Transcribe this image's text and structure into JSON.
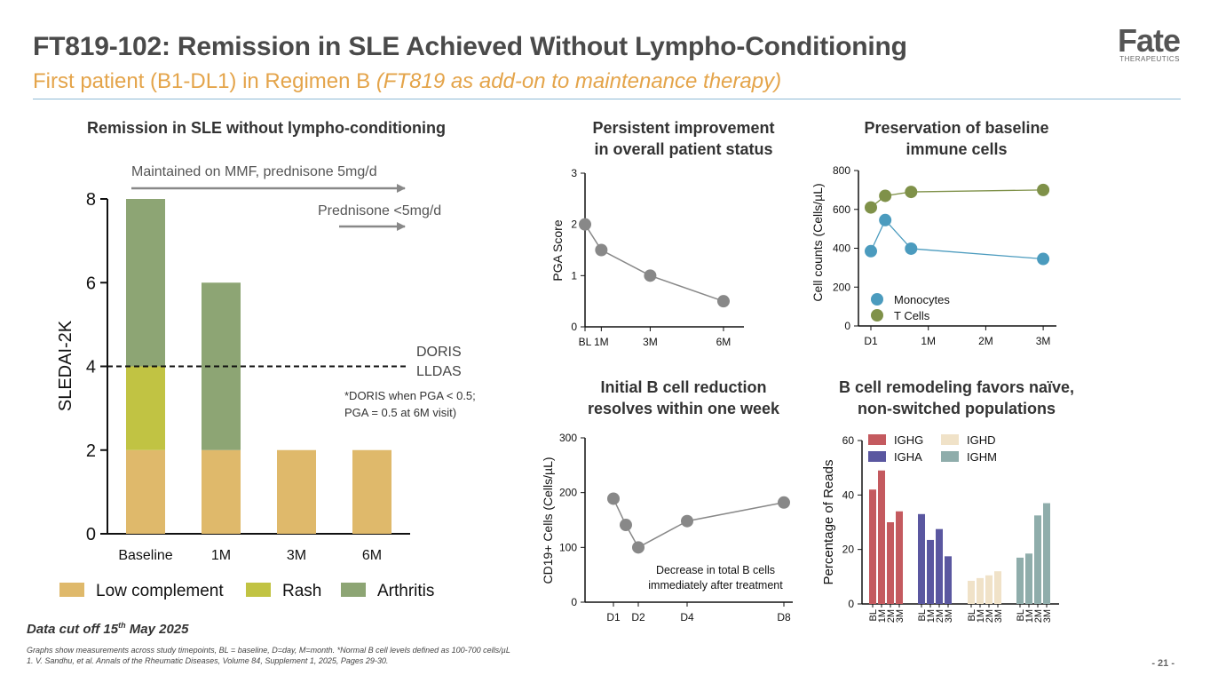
{
  "header": {
    "title": "FT819-102: Remission in SLE Achieved Without Lympho-Conditioning",
    "subtitle_main": "First patient (B1-DL1) in Regimen B ",
    "subtitle_italic": "(FT819 as add-on to maintenance therapy)",
    "logo_text": "Fate",
    "logo_sub": "THERAPEUTICS"
  },
  "colors": {
    "low_complement": "#dfb96b",
    "rash": "#c1c343",
    "arthritis": "#8da574",
    "gray_line": "#888888",
    "monocytes": "#4b9bbe",
    "tcells": "#7f9149",
    "ighg": "#c45a5f",
    "igha": "#5a57a0",
    "ighd": "#f0e2c8",
    "ighm": "#8fadab"
  },
  "chart_data": [
    {
      "id": "sledai",
      "type": "bar",
      "stacked": true,
      "title": "Remission in SLE without lympho-conditioning",
      "categories": [
        "Baseline",
        "1M",
        "3M",
        "6M"
      ],
      "series": [
        {
          "name": "Low complement",
          "values": [
            2,
            2,
            2,
            2
          ]
        },
        {
          "name": "Rash",
          "values": [
            2,
            0,
            0,
            0
          ]
        },
        {
          "name": "Arthritis",
          "values": [
            4,
            4,
            0,
            0
          ]
        }
      ],
      "ylabel": "SLEDAI-2K",
      "ylim": [
        0,
        8
      ],
      "yticks": [
        0,
        2,
        4,
        6,
        8
      ],
      "threshold": {
        "value": 4,
        "label1": "DORIS",
        "label2": "LLDAS"
      },
      "annotations": {
        "arrow1": "Maintained on MMF, prednisone 5mg/d",
        "arrow2": "Prednisone <5mg/d",
        "note1": "*DORIS when PGA < 0.5;",
        "note2": "PGA = 0.5 at 6M visit)"
      }
    },
    {
      "id": "pga",
      "type": "line",
      "title1": "Persistent improvement",
      "title2": "in overall patient status",
      "x": [
        "BL",
        "1M",
        "3M",
        "6M"
      ],
      "x_months": [
        0,
        0.5,
        2,
        4.25
      ],
      "values": [
        2,
        1.5,
        1,
        0.5
      ],
      "ylabel": "PGA Score",
      "ylim": [
        0,
        3
      ],
      "yticks": [
        0,
        1,
        2,
        3
      ]
    },
    {
      "id": "immune",
      "type": "line",
      "title1": "Preservation of baseline",
      "title2": "immune cells",
      "ylabel": "Cell counts (Cells/µL)",
      "ylim": [
        0,
        800
      ],
      "yticks": [
        0,
        200,
        400,
        600,
        800
      ],
      "xticks": [
        "D1",
        "1M",
        "2M",
        "3M"
      ],
      "series": [
        {
          "name": "Monocytes",
          "x": [
            0.0,
            0.25,
            0.7,
            3.0
          ],
          "values": [
            385,
            545,
            398,
            345
          ]
        },
        {
          "name": "T Cells",
          "x": [
            0.0,
            0.25,
            0.7,
            3.0
          ],
          "values": [
            610,
            670,
            690,
            700
          ]
        }
      ]
    },
    {
      "id": "bcell",
      "type": "line",
      "title1": "Initial B cell reduction",
      "title2": "resolves within one week",
      "ylabel": "CD19+ Cells (Cells/µL)",
      "ylim": [
        0,
        300
      ],
      "yticks": [
        0,
        100,
        200,
        300
      ],
      "xticks": [
        "D1",
        "D2",
        "D4",
        "D8"
      ],
      "x_days": [
        1,
        1.5,
        2,
        4,
        8
      ],
      "values": [
        189,
        141,
        100,
        148,
        182
      ],
      "annotation1": "Decrease in total B cells",
      "annotation2": "immediately after treatment"
    },
    {
      "id": "isotype",
      "type": "bar",
      "title1": "B cell remodeling favors naïve,",
      "title2": "non-switched populations",
      "ylabel": "Percentage of Reads",
      "ylim": [
        0,
        60
      ],
      "yticks": [
        0,
        20,
        40,
        60
      ],
      "categories": [
        "BL",
        "1M",
        "2M",
        "3M"
      ],
      "series": [
        {
          "name": "IGHG",
          "values": [
            42,
            49,
            30,
            34
          ]
        },
        {
          "name": "IGHA",
          "values": [
            33,
            23.5,
            27.5,
            17.5
          ]
        },
        {
          "name": "IGHD",
          "values": [
            8.5,
            9.5,
            10.5,
            12
          ]
        },
        {
          "name": "IGHM",
          "values": [
            17,
            18.5,
            32.5,
            37
          ]
        }
      ]
    }
  ],
  "footer": {
    "cutoff_pre": "Data cut off 15",
    "cutoff_sup": "th",
    "cutoff_post": " May 2025",
    "note": "Graphs show measurements across study timepoints, BL = baseline, D=day, M=month. *Normal B cell levels defined as 100-700 cells/µL",
    "reference": "1. V. Sandhu, et al. Annals of the Rheumatic Diseases, Volume 84, Supplement 1, 2025, Pages 29-30.",
    "page": "- 21 -"
  }
}
